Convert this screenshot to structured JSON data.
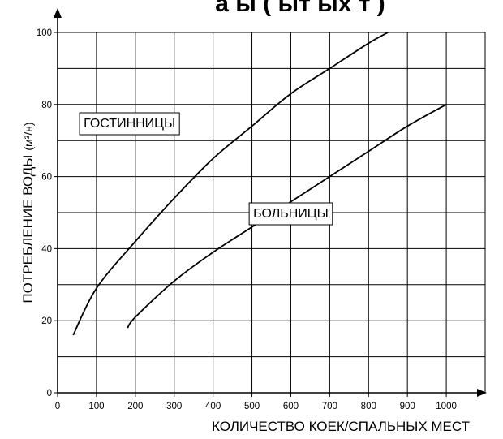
{
  "chart_data": {
    "type": "line",
    "title_visible_fragment": "а ы (   ыт ых   т )",
    "xlabel": "КОЛИЧЕСТВО КОЕК/СПАЛЬНЫХ МЕСТ",
    "ylabel_main": "ПОТРЕБЛЕНИЕ ВОДЫ",
    "ylabel_unit": "(м³/н)",
    "xlim": [
      0,
      1100
    ],
    "ylim": [
      0,
      100
    ],
    "x_ticks": [
      "0",
      "100",
      "200",
      "300",
      "400",
      "500",
      "600",
      "700",
      "800",
      "900",
      "1000"
    ],
    "y_ticks": [
      "0",
      "20",
      "40",
      "60",
      "80",
      "100"
    ],
    "grid": true,
    "series": [
      {
        "name": "ГОСТИННИЦЫ",
        "x": [
          40,
          100,
          200,
          300,
          400,
          500,
          600,
          700,
          800,
          850
        ],
        "y": [
          16,
          29,
          42,
          54,
          65,
          74,
          83,
          90,
          97,
          100
        ]
      },
      {
        "name": "БОЛЬНИЦЫ",
        "x": [
          180,
          200,
          300,
          400,
          500,
          600,
          700,
          800,
          900,
          1000
        ],
        "y": [
          18,
          21,
          31,
          39,
          46,
          53,
          60,
          67,
          74,
          80
        ]
      }
    ],
    "series_label_anchor": [
      {
        "x": 185,
        "y": 75
      },
      {
        "x": 600,
        "y": 50
      }
    ]
  }
}
